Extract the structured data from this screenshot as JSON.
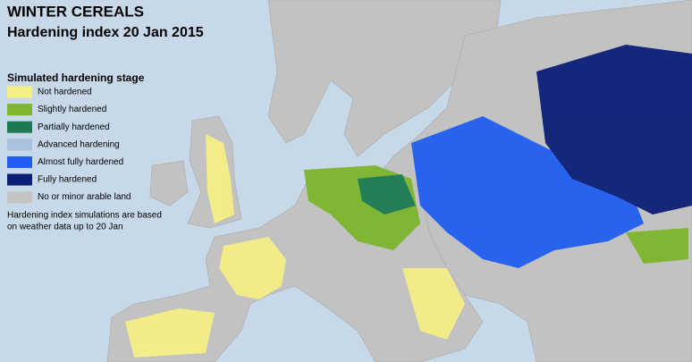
{
  "header": {
    "title": "WINTER CEREALS",
    "subtitle": "Hardening index 20 Jan 2015"
  },
  "legend": {
    "title": "Simulated hardening stage",
    "items": [
      {
        "label": "Not hardened",
        "color": "#f4ef86"
      },
      {
        "label": "Slightly hardened",
        "color": "#7db62c"
      },
      {
        "label": "Partially hardened",
        "color": "#1b7a52"
      },
      {
        "label": "Advanced hardening",
        "color": "#a9c1dd"
      },
      {
        "label": "Almost fully hardened",
        "color": "#1f5ef0"
      },
      {
        "label": "Fully hardened",
        "color": "#0b1f78"
      },
      {
        "label": "No or minor arable land",
        "color": "#c4c4c4"
      }
    ]
  },
  "note": {
    "lines": [
      "Hardening index simulations are based",
      "on weather data up to 20 Jan"
    ]
  }
}
